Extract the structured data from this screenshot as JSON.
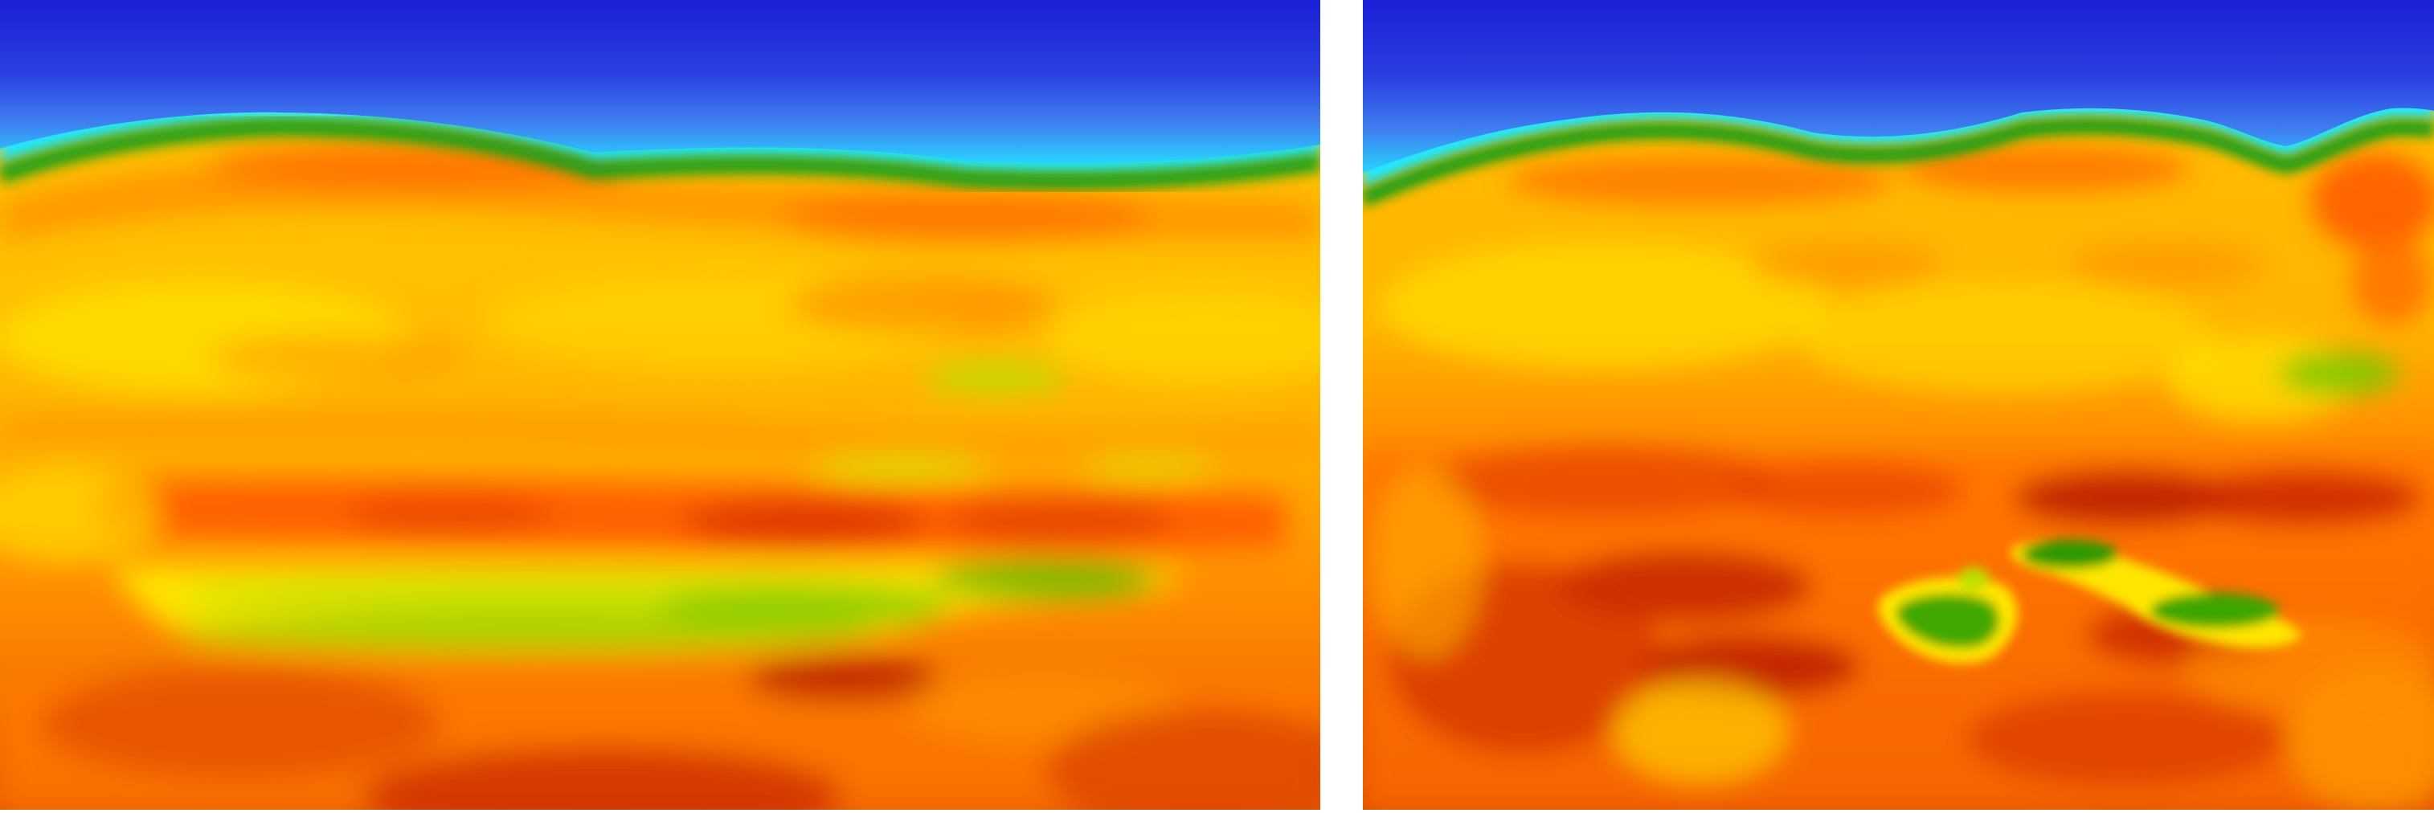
{
  "figure": {
    "panels": [
      {
        "id": "left",
        "colormap": "jet",
        "colors": {
          "top": "#1a1fd6",
          "shallow": "#2f5ae6",
          "interface": "#00e8ff",
          "band": "#19a012",
          "warm": "#ffb400",
          "hot": "#ff6a00",
          "deep": "#c91f00",
          "highlight": "#ffe600",
          "anomaly": "#7ccf00"
        }
      },
      {
        "id": "right",
        "colormap": "jet",
        "colors": {
          "top": "#1a1fd6",
          "shallow": "#2f5ae6",
          "interface": "#00e8ff",
          "band": "#19a012",
          "warm": "#ffb400",
          "hot": "#ff6a00",
          "deep": "#c91f00",
          "highlight": "#ffe600",
          "anomaly": "#3aa300"
        }
      }
    ]
  }
}
